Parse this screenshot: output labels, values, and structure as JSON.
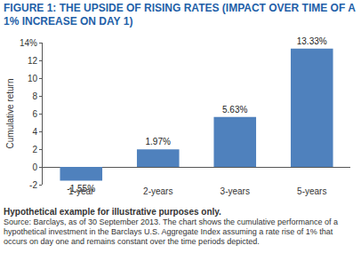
{
  "chart_data": {
    "type": "bar",
    "title": "FIGURE 1: THE UPSIDE OF RISING RATES (IMPACT OVER TIME OF A 1% INCREASE ON DAY 1)",
    "y_label": "Cumulative return",
    "categories": [
      "1-year",
      "2-years",
      "3-years",
      "5-years"
    ],
    "values": [
      -1.55,
      1.97,
      5.63,
      13.33
    ],
    "value_labels": [
      "-1.55%",
      "1.97%",
      "5.63%",
      "13.33%"
    ],
    "color": "#4f81bd",
    "ylim": [
      -2,
      14
    ],
    "yticks": [
      -2,
      0,
      2,
      4,
      6,
      8,
      10,
      12,
      {
        "value": 14,
        "label": "14%"
      }
    ],
    "grid": false,
    "data_labels": true,
    "annotations": [
      "Hypothetical example for illustrative purposes only.",
      "Source: Barclays, as of 30 September 2013. The chart shows the cumulative performance of a hypothetical investment in the Barclays U.S. Aggregate Index assuming a rate rise of 1% that occurs on day one and remains constant over the time periods depicted."
    ]
  }
}
